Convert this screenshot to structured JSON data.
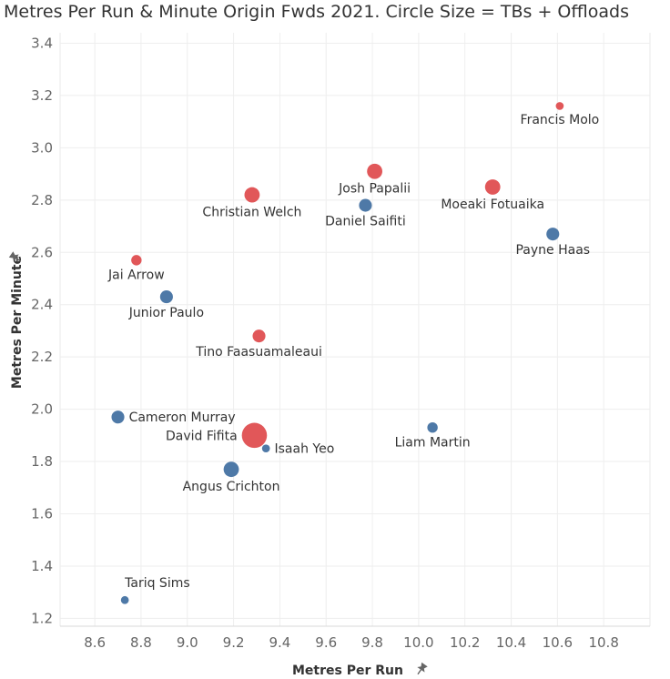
{
  "chart_data": {
    "type": "scatter",
    "title": "Metres Per Run & Minute Origin Fwds 2021. Circle Size = TBs + Offloads",
    "xlabel": "Metres Per Run",
    "ylabel": "Metres Per Minute",
    "xlim": [
      8.45,
      11.0
    ],
    "ylim": [
      1.17,
      3.44
    ],
    "x_ticks": [
      8.6,
      8.8,
      9.0,
      9.2,
      9.4,
      9.6,
      9.8,
      10.0,
      10.2,
      10.4,
      10.6,
      10.8
    ],
    "y_ticks": [
      1.2,
      1.4,
      1.6,
      1.8,
      2.0,
      2.2,
      2.4,
      2.6,
      2.8,
      3.0,
      3.2,
      3.4
    ],
    "grid": true,
    "colors": {
      "red": "#e15759",
      "blue": "#4e79a7"
    },
    "points": [
      {
        "name": "Francis Molo",
        "x": 10.61,
        "y": 3.16,
        "color": "red",
        "size": 1,
        "label_pos": "below"
      },
      {
        "name": "Josh Papalii",
        "x": 9.81,
        "y": 2.91,
        "color": "red",
        "size": 4,
        "label_pos": "below"
      },
      {
        "name": "Moeaki Fotuaika",
        "x": 10.32,
        "y": 2.85,
        "color": "red",
        "size": 4,
        "label_pos": "below"
      },
      {
        "name": "Christian Welch",
        "x": 9.28,
        "y": 2.82,
        "color": "red",
        "size": 4,
        "label_pos": "below"
      },
      {
        "name": "Daniel Saifiti",
        "x": 9.77,
        "y": 2.78,
        "color": "blue",
        "size": 3,
        "label_pos": "below"
      },
      {
        "name": "Payne Haas",
        "x": 10.58,
        "y": 2.67,
        "color": "blue",
        "size": 3,
        "label_pos": "below"
      },
      {
        "name": "Jai Arrow",
        "x": 8.78,
        "y": 2.57,
        "color": "red",
        "size": 2,
        "label_pos": "below"
      },
      {
        "name": "Junior Paulo",
        "x": 8.91,
        "y": 2.43,
        "color": "blue",
        "size": 3,
        "label_pos": "below"
      },
      {
        "name": "Tino Faasuamaleaui",
        "x": 9.31,
        "y": 2.28,
        "color": "red",
        "size": 3,
        "label_pos": "below"
      },
      {
        "name": "Cameron Murray",
        "x": 8.7,
        "y": 1.97,
        "color": "blue",
        "size": 3,
        "label_pos": "right"
      },
      {
        "name": "Liam Martin",
        "x": 10.06,
        "y": 1.93,
        "color": "blue",
        "size": 2,
        "label_pos": "below"
      },
      {
        "name": "David Fifita",
        "x": 9.29,
        "y": 1.9,
        "color": "red",
        "size": 8,
        "label_pos": "left"
      },
      {
        "name": "Isaah Yeo",
        "x": 9.34,
        "y": 1.85,
        "color": "blue",
        "size": 1,
        "label_pos": "right"
      },
      {
        "name": "Angus Crichton",
        "x": 9.19,
        "y": 1.77,
        "color": "blue",
        "size": 4,
        "label_pos": "below"
      },
      {
        "name": "Tariq Sims",
        "x": 8.73,
        "y": 1.27,
        "color": "blue",
        "size": 1,
        "label_pos": "above-right"
      }
    ]
  }
}
